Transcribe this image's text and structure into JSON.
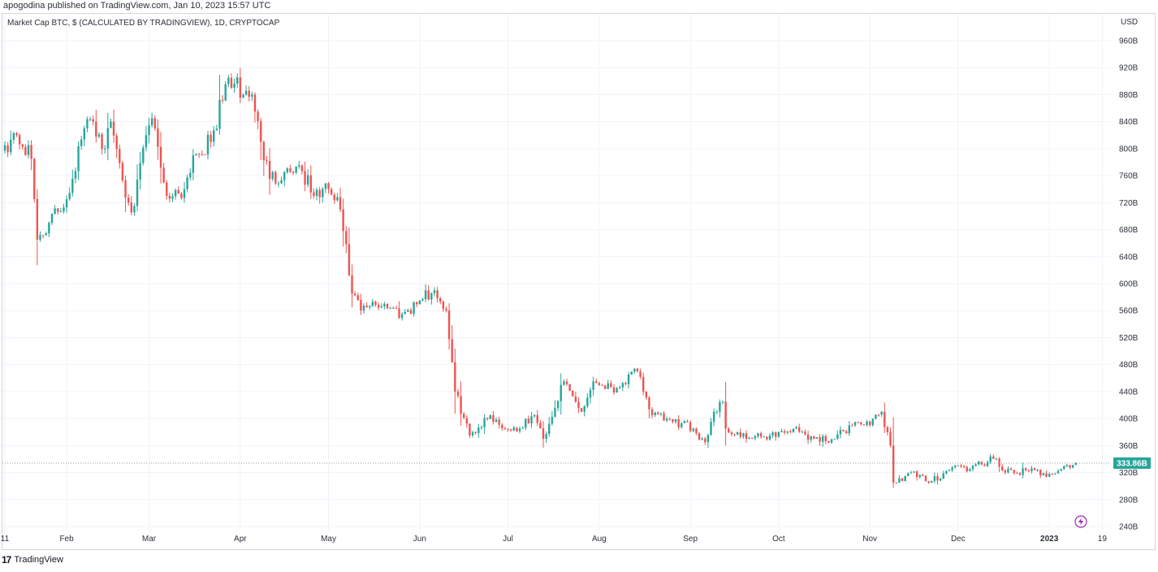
{
  "header": {
    "published_by": "apogodina published on TradingView.com, Jan 10, 2023 15:57 UTC"
  },
  "legend": {
    "title": "Market Cap BTC, $ (CALCULATED BY TRADINGVIEW), 1D, CRYPTOCAP",
    "currency": "USD"
  },
  "footer": {
    "brand_logo": "17",
    "brand_name": "TradingView"
  },
  "icons": {
    "bolt": "lightning-icon"
  },
  "colors": {
    "up": "#26a69a",
    "down": "#ef5350",
    "grid": "#f0f3fa",
    "last_price_badge": "#26a69a"
  },
  "chart_data": {
    "type": "candlestick",
    "title": "Market Cap BTC, $ (CALCULATED BY TRADINGVIEW), 1D, CRYPTOCAP",
    "unit": "USD",
    "y_unit_suffix": "B",
    "ylim": [
      240,
      960
    ],
    "y_ticks": [
      "960B",
      "920B",
      "880B",
      "840B",
      "800B",
      "760B",
      "720B",
      "680B",
      "640B",
      "600B",
      "560B",
      "520B",
      "480B",
      "440B",
      "400B",
      "360B",
      "320B",
      "280B",
      "240B"
    ],
    "x_ticks": [
      "11",
      "Feb",
      "Mar",
      "Apr",
      "May",
      "Jun",
      "Jul",
      "Aug",
      "Sep",
      "Oct",
      "Nov",
      "Dec",
      "2023",
      "19"
    ],
    "last_value": 333.86,
    "last_value_label": "333.86B",
    "close_anchors": [
      {
        "date": "2022-01-11",
        "close": 805
      },
      {
        "date": "2022-01-15",
        "close": 820
      },
      {
        "date": "2022-01-20",
        "close": 785
      },
      {
        "date": "2022-01-22",
        "close": 665
      },
      {
        "date": "2022-01-26",
        "close": 690
      },
      {
        "date": "2022-02-01",
        "close": 725
      },
      {
        "date": "2022-02-07",
        "close": 830
      },
      {
        "date": "2022-02-10",
        "close": 840
      },
      {
        "date": "2022-02-14",
        "close": 800
      },
      {
        "date": "2022-02-16",
        "close": 840
      },
      {
        "date": "2022-02-22",
        "close": 720
      },
      {
        "date": "2022-02-24",
        "close": 715
      },
      {
        "date": "2022-02-28",
        "close": 820
      },
      {
        "date": "2022-03-02",
        "close": 845
      },
      {
        "date": "2022-03-07",
        "close": 730
      },
      {
        "date": "2022-03-13",
        "close": 740
      },
      {
        "date": "2022-03-16",
        "close": 790
      },
      {
        "date": "2022-03-22",
        "close": 810
      },
      {
        "date": "2022-03-28",
        "close": 905
      },
      {
        "date": "2022-04-02",
        "close": 880
      },
      {
        "date": "2022-04-05",
        "close": 880
      },
      {
        "date": "2022-04-08",
        "close": 810
      },
      {
        "date": "2022-04-11",
        "close": 755
      },
      {
        "date": "2022-04-16",
        "close": 765
      },
      {
        "date": "2022-04-21",
        "close": 775
      },
      {
        "date": "2022-04-26",
        "close": 730
      },
      {
        "date": "2022-05-01",
        "close": 740
      },
      {
        "date": "2022-05-05",
        "close": 710
      },
      {
        "date": "2022-05-09",
        "close": 585
      },
      {
        "date": "2022-05-12",
        "close": 560
      },
      {
        "date": "2022-05-14",
        "close": 565
      },
      {
        "date": "2022-05-20",
        "close": 570
      },
      {
        "date": "2022-05-26",
        "close": 555
      },
      {
        "date": "2022-06-01",
        "close": 575
      },
      {
        "date": "2022-06-06",
        "close": 590
      },
      {
        "date": "2022-06-10",
        "close": 560
      },
      {
        "date": "2022-06-13",
        "close": 440
      },
      {
        "date": "2022-06-18",
        "close": 375
      },
      {
        "date": "2022-06-25",
        "close": 405
      },
      {
        "date": "2022-06-30",
        "close": 385
      },
      {
        "date": "2022-07-05",
        "close": 385
      },
      {
        "date": "2022-07-10",
        "close": 405
      },
      {
        "date": "2022-07-13",
        "close": 370
      },
      {
        "date": "2022-07-20",
        "close": 455
      },
      {
        "date": "2022-07-26",
        "close": 410
      },
      {
        "date": "2022-07-30",
        "close": 455
      },
      {
        "date": "2022-08-07",
        "close": 445
      },
      {
        "date": "2022-08-14",
        "close": 470
      },
      {
        "date": "2022-08-19",
        "close": 405
      },
      {
        "date": "2022-08-26",
        "close": 395
      },
      {
        "date": "2022-09-02",
        "close": 385
      },
      {
        "date": "2022-09-06",
        "close": 365
      },
      {
        "date": "2022-09-09",
        "close": 410
      },
      {
        "date": "2022-09-12",
        "close": 425
      },
      {
        "date": "2022-09-13",
        "close": 385
      },
      {
        "date": "2022-09-20",
        "close": 370
      },
      {
        "date": "2022-09-28",
        "close": 375
      },
      {
        "date": "2022-10-06",
        "close": 385
      },
      {
        "date": "2022-10-13",
        "close": 370
      },
      {
        "date": "2022-10-20",
        "close": 370
      },
      {
        "date": "2022-10-27",
        "close": 395
      },
      {
        "date": "2022-11-01",
        "close": 390
      },
      {
        "date": "2022-11-05",
        "close": 410
      },
      {
        "date": "2022-11-08",
        "close": 360
      },
      {
        "date": "2022-11-09",
        "close": 305
      },
      {
        "date": "2022-11-15",
        "close": 320
      },
      {
        "date": "2022-11-21",
        "close": 305
      },
      {
        "date": "2022-11-30",
        "close": 330
      },
      {
        "date": "2022-12-05",
        "close": 325
      },
      {
        "date": "2022-12-13",
        "close": 340
      },
      {
        "date": "2022-12-17",
        "close": 320
      },
      {
        "date": "2022-12-25",
        "close": 322
      },
      {
        "date": "2023-01-01",
        "close": 318
      },
      {
        "date": "2023-01-05",
        "close": 325
      },
      {
        "date": "2023-01-10",
        "close": 333.86
      }
    ]
  }
}
